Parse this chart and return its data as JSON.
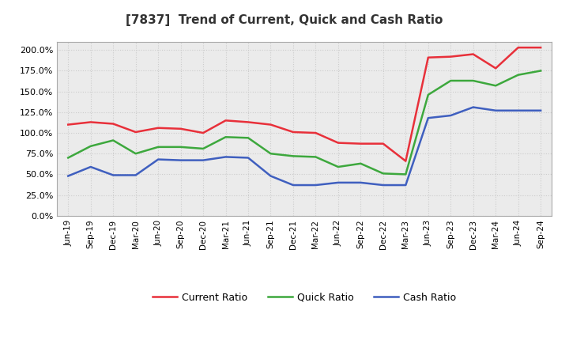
{
  "title": "[7837]  Trend of Current, Quick and Cash Ratio",
  "x_labels": [
    "Jun-19",
    "Sep-19",
    "Dec-19",
    "Mar-20",
    "Jun-20",
    "Sep-20",
    "Dec-20",
    "Mar-21",
    "Jun-21",
    "Sep-21",
    "Dec-21",
    "Mar-22",
    "Jun-22",
    "Sep-22",
    "Dec-22",
    "Mar-23",
    "Jun-23",
    "Sep-23",
    "Dec-23",
    "Mar-24",
    "Jun-24",
    "Sep-24"
  ],
  "current_ratio": [
    110,
    113,
    111,
    101,
    106,
    105,
    100,
    115,
    113,
    110,
    101,
    100,
    88,
    87,
    87,
    66,
    191,
    192,
    195,
    178,
    203,
    203
  ],
  "quick_ratio": [
    70,
    84,
    91,
    75,
    83,
    83,
    81,
    95,
    94,
    75,
    72,
    71,
    59,
    63,
    51,
    50,
    146,
    163,
    163,
    157,
    170,
    175
  ],
  "cash_ratio": [
    48,
    59,
    49,
    49,
    68,
    67,
    67,
    71,
    70,
    48,
    37,
    37,
    40,
    40,
    37,
    37,
    118,
    121,
    131,
    127,
    127,
    127
  ],
  "current_color": "#e8303a",
  "quick_color": "#3da83d",
  "cash_color": "#3f5fbf",
  "bg_color": "#ffffff",
  "plot_bg_color": "#ebebeb",
  "grid_color": "#cccccc",
  "ylim": [
    0,
    210
  ],
  "yticks": [
    0,
    25,
    50,
    75,
    100,
    125,
    150,
    175,
    200
  ],
  "legend_labels": [
    "Current Ratio",
    "Quick Ratio",
    "Cash Ratio"
  ],
  "line_width": 1.8
}
